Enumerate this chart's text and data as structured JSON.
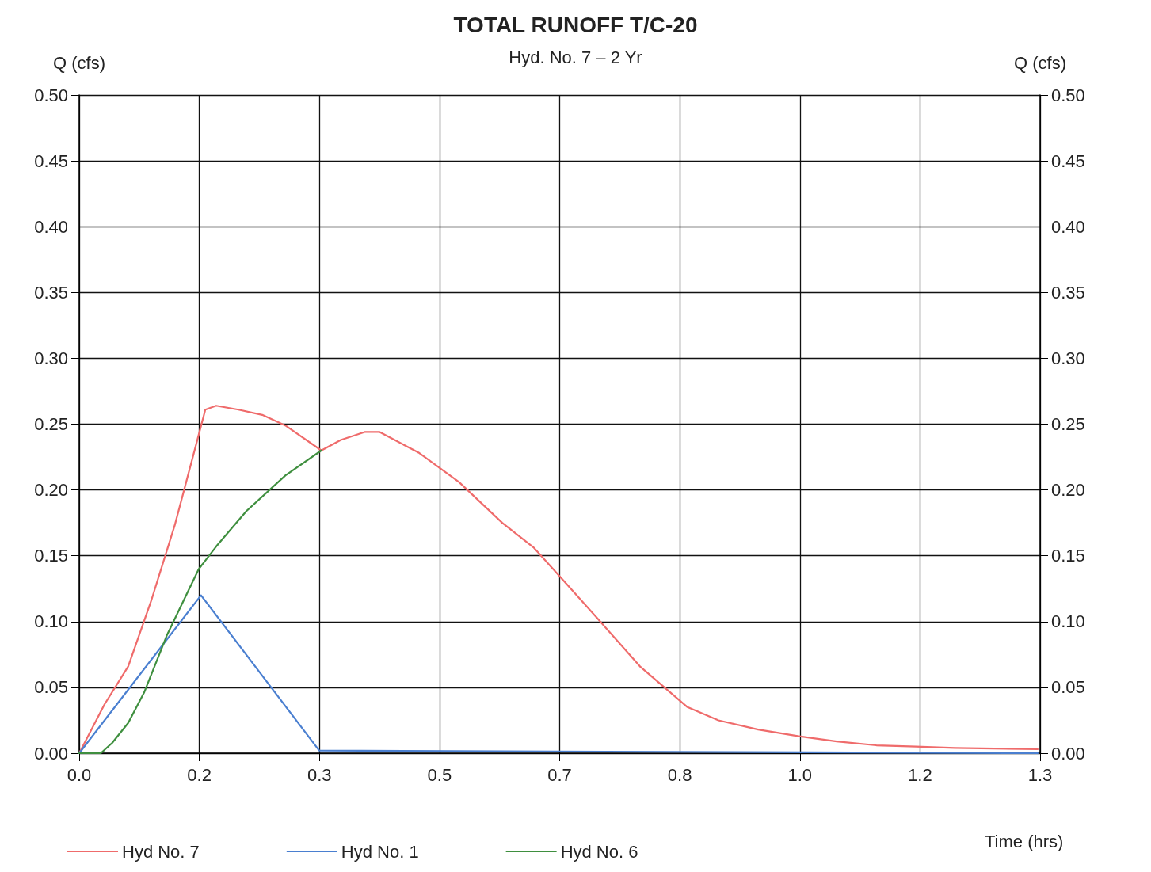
{
  "chart_data": {
    "type": "line",
    "title": "TOTAL RUNOFF T/C-20",
    "subtitle": "Hyd. No. 7 – 2 Yr",
    "xlabel": "Time (hrs)",
    "ylabel": "Q (cfs)",
    "y2label": "Q (cfs)",
    "series": [
      {
        "name": "Hyd No. 7",
        "color": "#ef6b6b",
        "x": [
          0,
          0.035,
          0.068,
          0.1,
          0.133,
          0.175,
          0.19,
          0.221,
          0.254,
          0.286,
          0.336,
          0.363,
          0.396,
          0.417,
          0.472,
          0.527,
          0.587,
          0.631,
          0.669,
          0.723,
          0.778,
          0.844,
          0.887,
          0.942,
          0.997,
          1.051,
          1.106,
          1.161,
          1.215,
          1.33
        ],
        "values": [
          0,
          0.037,
          0.066,
          0.116,
          0.174,
          0.261,
          0.264,
          0.261,
          0.257,
          0.249,
          0.23,
          0.238,
          0.244,
          0.244,
          0.228,
          0.206,
          0.175,
          0.156,
          0.133,
          0.1,
          0.066,
          0.035,
          0.025,
          0.018,
          0.013,
          0.009,
          0.006,
          0.005,
          0.004,
          0.003
        ]
      },
      {
        "name": "Hyd No. 1",
        "color": "#4a7fd0",
        "x": [
          0,
          0.169,
          0.333,
          1.33
        ],
        "values": [
          0,
          0.12,
          0.002,
          0
        ]
      },
      {
        "name": "Hyd No. 6",
        "color": "#3f8f3f",
        "x": [
          0,
          0.03,
          0.046,
          0.068,
          0.09,
          0.122,
          0.166,
          0.19,
          0.232,
          0.286,
          0.336
        ],
        "values": [
          0,
          0,
          0.008,
          0.023,
          0.046,
          0.09,
          0.14,
          0.157,
          0.184,
          0.211,
          0.23
        ]
      }
    ],
    "xlim": [
      0,
      1.3333
    ],
    "xticks": [
      {
        "value": 0,
        "label": "0.0"
      },
      {
        "value": 0.1667,
        "label": "0.2"
      },
      {
        "value": 0.3333,
        "label": "0.3"
      },
      {
        "value": 0.5,
        "label": "0.5"
      },
      {
        "value": 0.6667,
        "label": "0.7"
      },
      {
        "value": 0.8333,
        "label": "0.8"
      },
      {
        "value": 1,
        "label": "1.0"
      },
      {
        "value": 1.1667,
        "label": "1.2"
      },
      {
        "value": 1.3333,
        "label": "1.3"
      }
    ],
    "ylim": [
      0,
      0.5
    ],
    "yticks": [
      {
        "value": 0,
        "label": "0.00"
      },
      {
        "value": 0.05,
        "label": "0.05"
      },
      {
        "value": 0.1,
        "label": "0.10"
      },
      {
        "value": 0.15,
        "label": "0.15"
      },
      {
        "value": 0.2,
        "label": "0.20"
      },
      {
        "value": 0.25,
        "label": "0.25"
      },
      {
        "value": 0.3,
        "label": "0.30"
      },
      {
        "value": 0.35,
        "label": "0.35"
      },
      {
        "value": 0.4,
        "label": "0.40"
      },
      {
        "value": 0.45,
        "label": "0.45"
      },
      {
        "value": 0.5,
        "label": "0.50"
      }
    ],
    "y2lim": [
      0,
      0.5
    ],
    "y2ticks": [
      {
        "value": 0,
        "label": "0.00"
      },
      {
        "value": 0.05,
        "label": "0.05"
      },
      {
        "value": 0.1,
        "label": "0.10"
      },
      {
        "value": 0.15,
        "label": "0.15"
      },
      {
        "value": 0.2,
        "label": "0.20"
      },
      {
        "value": 0.25,
        "label": "0.25"
      },
      {
        "value": 0.3,
        "label": "0.30"
      },
      {
        "value": 0.35,
        "label": "0.35"
      },
      {
        "value": 0.4,
        "label": "0.40"
      },
      {
        "value": 0.45,
        "label": "0.45"
      },
      {
        "value": 0.5,
        "label": "0.50"
      }
    ],
    "grid": true,
    "legend": "bottom left",
    "marker": "none",
    "line_style": "solid"
  }
}
